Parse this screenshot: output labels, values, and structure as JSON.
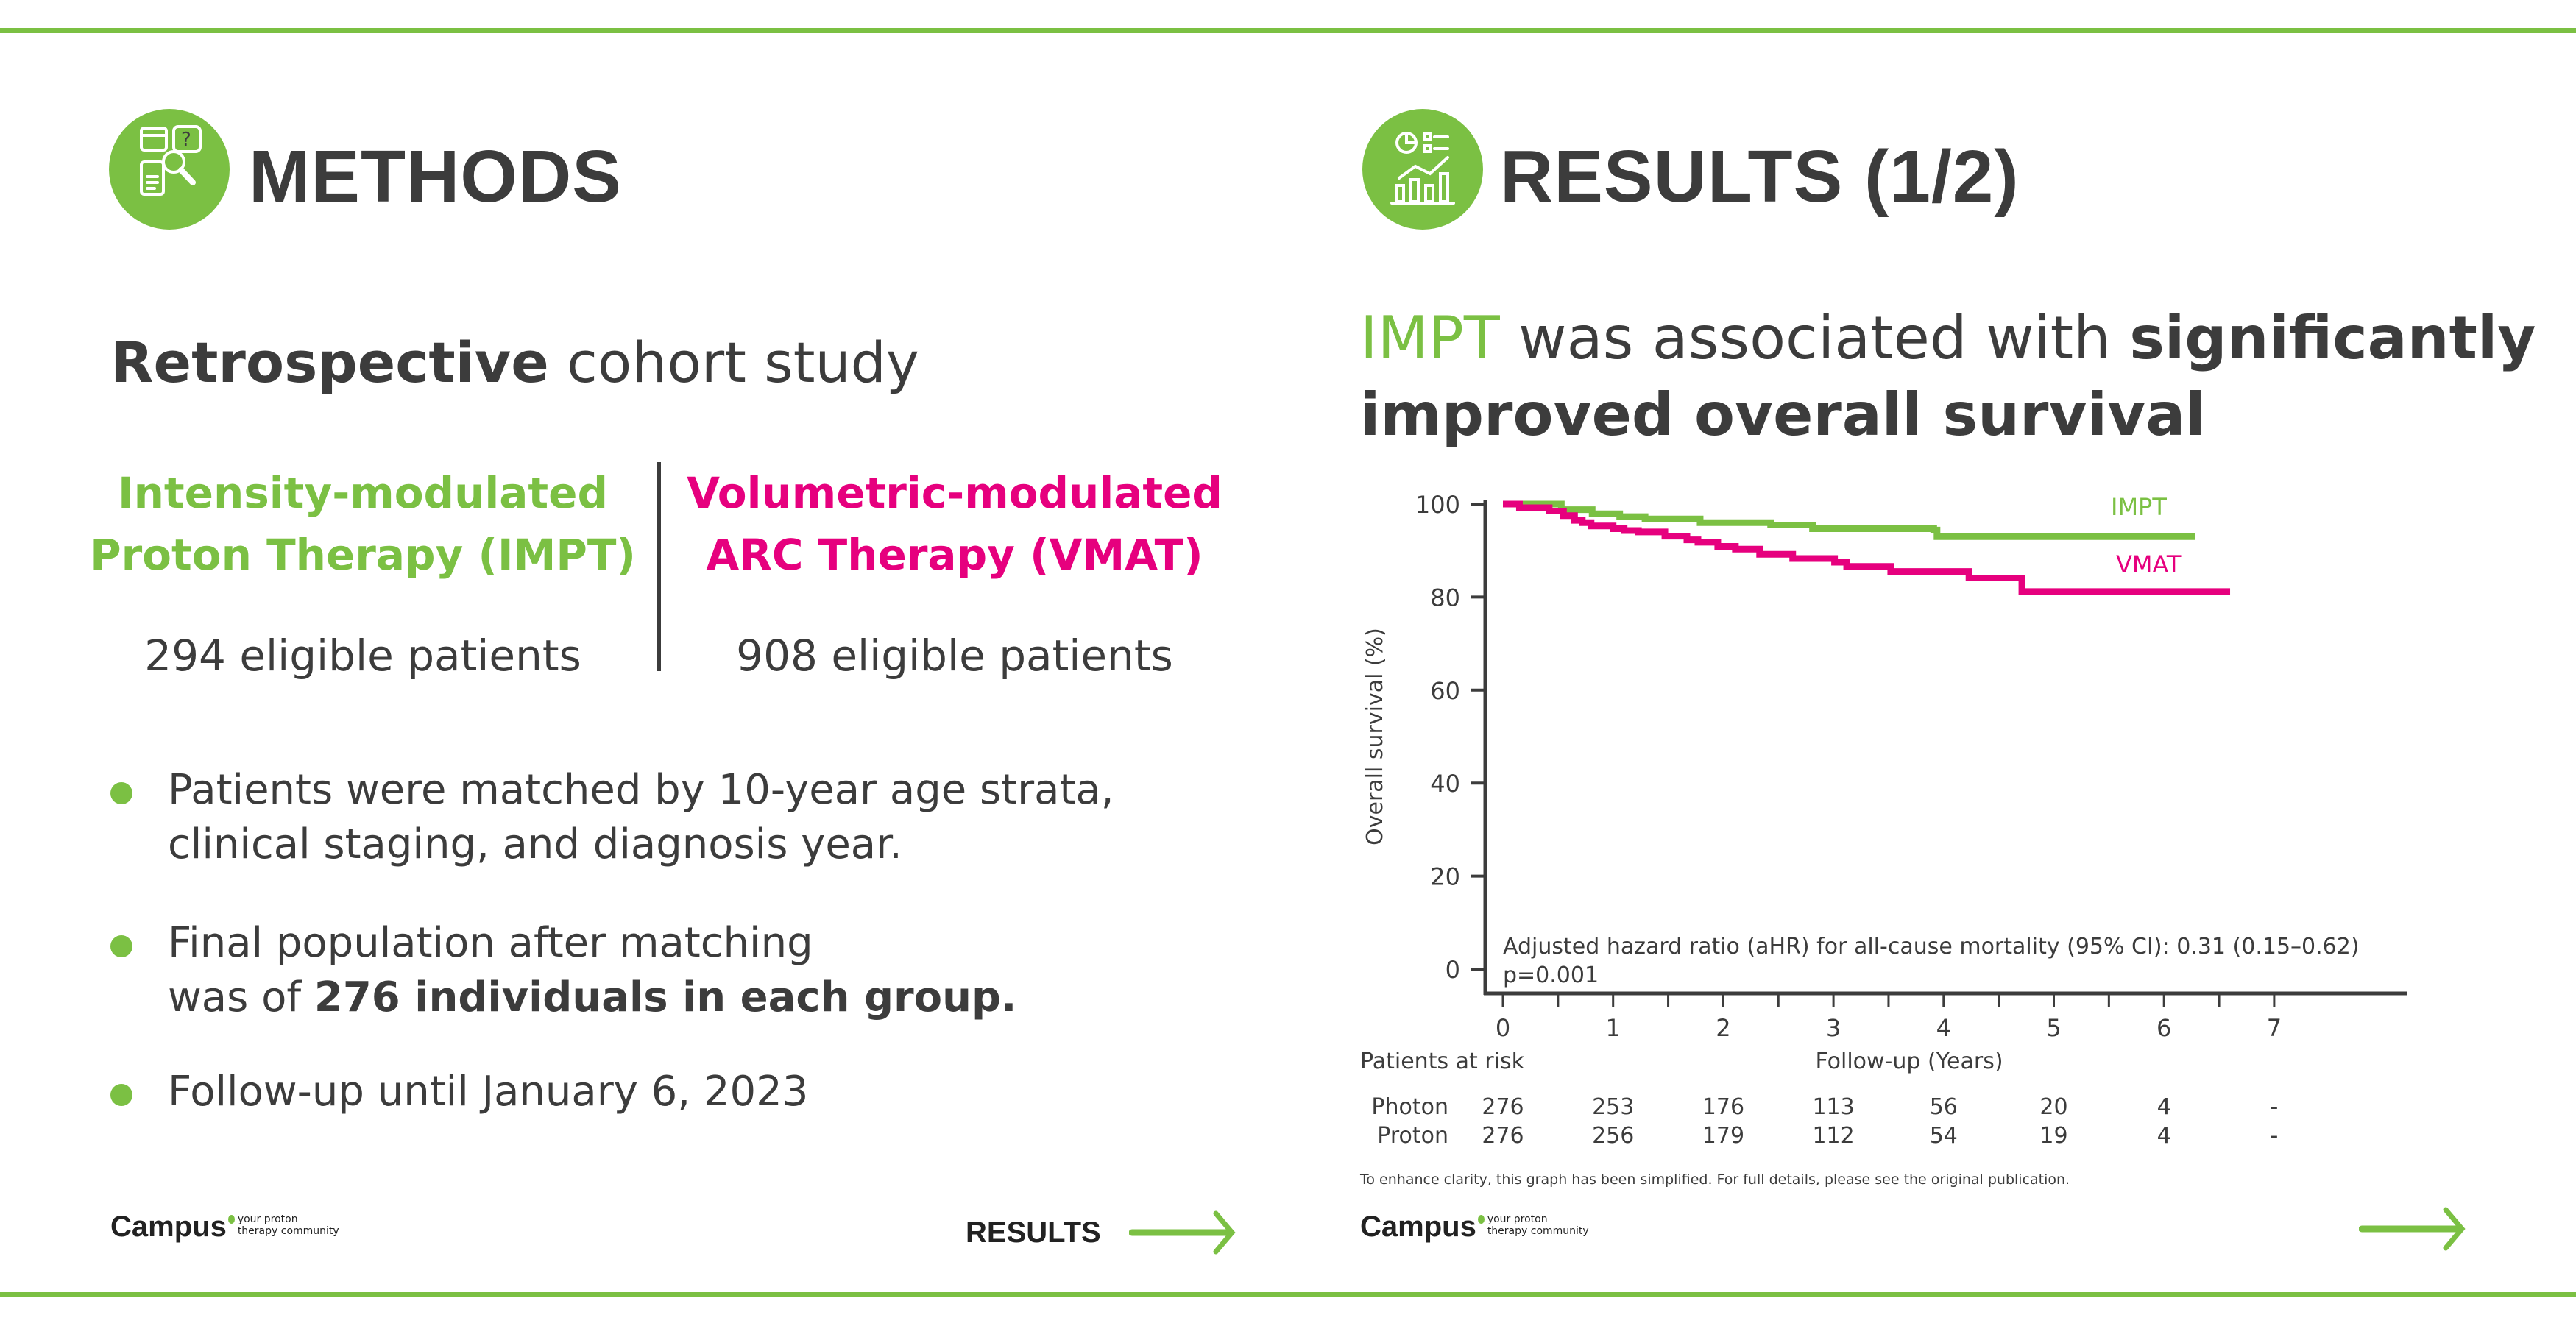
{
  "colors": {
    "accent": "#7bc043",
    "impt": "#7bc043",
    "vmat": "#e6007e",
    "text": "#3c3c3c"
  },
  "methods": {
    "icon": "research-magnifier-icon",
    "title": "METHODS",
    "study_bold": "Retrospective",
    "study_rest": " cohort study",
    "impt": {
      "line1": "Intensity-modulated",
      "line2": "Proton Therapy (IMPT)",
      "patients": "294 eligible patients"
    },
    "vmat": {
      "line1": "Volumetric-modulated",
      "line2": "ARC Therapy (VMAT)",
      "patients": "908 eligible patients"
    },
    "bullets": [
      {
        "line1": "Patients were matched by 10-year age strata,",
        "line2": "clinical staging, and diagnosis year."
      },
      {
        "line1": "Final population after matching",
        "line2_pre": "was of ",
        "line2_bold": "276 individuals in each group."
      },
      {
        "line1": "Follow-up until January 6, 2023"
      }
    ],
    "next_label": "RESULTS"
  },
  "results": {
    "icon": "analytics-chart-icon",
    "title": "RESULTS (1/2)",
    "headline": {
      "green": "IMPT",
      "mid": " was associated with ",
      "bold1": "significantly",
      "bold2": "improved overall survival"
    },
    "note": "To enhance clarity, this graph has been simplified. For full details, please see the original publication."
  },
  "logo": {
    "name": "Campus",
    "tag1": "your proton",
    "tag2": "therapy community"
  },
  "chart_data": {
    "type": "line",
    "step": true,
    "xlabel": "Follow-up (Years)",
    "ylabel": "Overall survival (%)",
    "xlim": [
      0,
      7.5
    ],
    "ylim": [
      0,
      100
    ],
    "xticks": [
      0,
      1,
      2,
      3,
      4,
      5,
      6,
      7
    ],
    "yticks": [
      0,
      20,
      40,
      60,
      80,
      100
    ],
    "annotation1": "Adjusted hazard ratio (aHR) for all-cause mortality (95% CI): 0.31 (0.15–0.62)",
    "annotation2": "p=0.001",
    "series": [
      {
        "name": "IMPT",
        "color": "#7bc043",
        "points": [
          [
            0,
            100
          ],
          [
            0.53,
            98.8
          ],
          [
            0.81,
            97.9
          ],
          [
            1.06,
            97.3
          ],
          [
            1.29,
            96.8
          ],
          [
            1.79,
            96.0
          ],
          [
            2.43,
            95.5
          ],
          [
            2.81,
            94.7
          ],
          [
            3.91,
            94.4
          ],
          [
            3.94,
            93.0
          ],
          [
            6.28,
            93.0
          ]
        ]
      },
      {
        "name": "VMAT",
        "color": "#e6007e",
        "points": [
          [
            0,
            100
          ],
          [
            0.15,
            99.2
          ],
          [
            0.42,
            98.5
          ],
          [
            0.55,
            97.5
          ],
          [
            0.65,
            96.5
          ],
          [
            0.72,
            96.0
          ],
          [
            0.8,
            95.3
          ],
          [
            1.0,
            94.7
          ],
          [
            1.1,
            94.3
          ],
          [
            1.23,
            94.0
          ],
          [
            1.47,
            93.1
          ],
          [
            1.67,
            92.3
          ],
          [
            1.77,
            91.8
          ],
          [
            1.95,
            90.9
          ],
          [
            2.11,
            90.3
          ],
          [
            2.33,
            89.2
          ],
          [
            2.63,
            88.3
          ],
          [
            3.01,
            87.5
          ],
          [
            3.12,
            86.6
          ],
          [
            3.52,
            85.5
          ],
          [
            4.23,
            84.1
          ],
          [
            4.71,
            81.2
          ],
          [
            6.6,
            81.2
          ]
        ]
      }
    ],
    "risk_table": {
      "title": "Patients at risk",
      "rows": [
        {
          "label": "Photon",
          "values": [
            "276",
            "253",
            "176",
            "113",
            "56",
            "20",
            "4",
            "-"
          ]
        },
        {
          "label": "Proton",
          "values": [
            "276",
            "256",
            "179",
            "112",
            "54",
            "19",
            "4",
            "-"
          ]
        }
      ]
    }
  }
}
